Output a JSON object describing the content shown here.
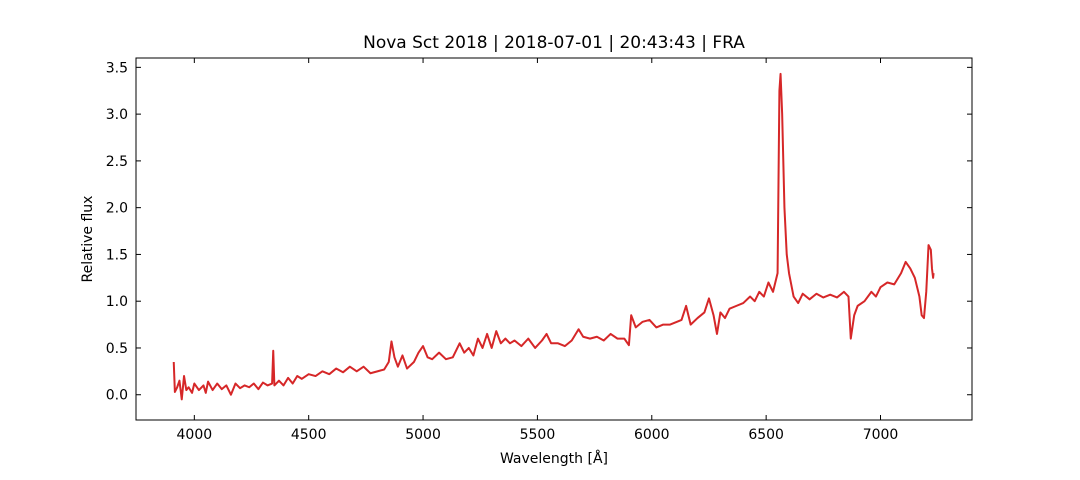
{
  "chart_data": {
    "type": "line",
    "title": "Nova Sct 2018 | 2018-07-01 | 20:43:43 | FRA",
    "xlabel": "Wavelength [Å]",
    "ylabel": "Relative flux",
    "xlim": [
      3745,
      7400
    ],
    "ylim": [
      -0.27,
      3.6
    ],
    "xticks": [
      4000,
      4500,
      5000,
      5500,
      6000,
      6500,
      7000
    ],
    "yticks": [
      {
        "value": 0,
        "label": "0.0"
      },
      0.5,
      {
        "value": 1,
        "label": "1.0"
      },
      1.5,
      {
        "value": 2,
        "label": "2.0"
      },
      2.5,
      {
        "value": 3,
        "label": "3.0"
      },
      3.5
    ],
    "series": [
      {
        "color": "#d62728",
        "x": [
          3910,
          3915,
          3925,
          3935,
          3945,
          3955,
          3965,
          3975,
          3990,
          4000,
          4020,
          4040,
          4050,
          4060,
          4080,
          4100,
          4120,
          4140,
          4160,
          4180,
          4200,
          4220,
          4240,
          4260,
          4280,
          4300,
          4320,
          4340,
          4345,
          4350,
          4370,
          4390,
          4410,
          4430,
          4450,
          4470,
          4500,
          4530,
          4560,
          4590,
          4620,
          4650,
          4680,
          4710,
          4740,
          4770,
          4800,
          4830,
          4850,
          4862,
          4875,
          4890,
          4910,
          4930,
          4960,
          4980,
          5000,
          5020,
          5040,
          5070,
          5100,
          5130,
          5160,
          5180,
          5200,
          5220,
          5240,
          5260,
          5280,
          5300,
          5320,
          5340,
          5360,
          5380,
          5400,
          5430,
          5460,
          5490,
          5520,
          5540,
          5560,
          5590,
          5620,
          5650,
          5680,
          5700,
          5730,
          5760,
          5790,
          5820,
          5850,
          5880,
          5900,
          5910,
          5930,
          5960,
          5990,
          6020,
          6050,
          6080,
          6110,
          6130,
          6150,
          6170,
          6200,
          6230,
          6250,
          6270,
          6285,
          6300,
          6320,
          6340,
          6370,
          6400,
          6430,
          6450,
          6470,
          6490,
          6510,
          6530,
          6550,
          6558,
          6563,
          6570,
          6580,
          6590,
          6600,
          6620,
          6640,
          6660,
          6690,
          6720,
          6750,
          6780,
          6810,
          6840,
          6860,
          6870,
          6885,
          6900,
          6930,
          6960,
          6980,
          7000,
          7030,
          7060,
          7090,
          7110,
          7130,
          7150,
          7170,
          7180,
          7190,
          7200,
          7210,
          7220,
          7225,
          7230,
          7232
        ],
        "values": [
          0.35,
          0.03,
          0.08,
          0.15,
          -0.05,
          0.2,
          0.05,
          0.08,
          0.02,
          0.12,
          0.05,
          0.1,
          0.02,
          0.14,
          0.05,
          0.12,
          0.06,
          0.1,
          0.0,
          0.12,
          0.07,
          0.1,
          0.08,
          0.12,
          0.06,
          0.13,
          0.1,
          0.12,
          0.47,
          0.1,
          0.15,
          0.1,
          0.18,
          0.12,
          0.2,
          0.17,
          0.22,
          0.2,
          0.25,
          0.22,
          0.28,
          0.24,
          0.3,
          0.25,
          0.3,
          0.23,
          0.25,
          0.27,
          0.35,
          0.57,
          0.4,
          0.3,
          0.42,
          0.28,
          0.35,
          0.45,
          0.52,
          0.4,
          0.38,
          0.45,
          0.38,
          0.4,
          0.55,
          0.45,
          0.5,
          0.42,
          0.6,
          0.5,
          0.65,
          0.5,
          0.68,
          0.55,
          0.6,
          0.55,
          0.58,
          0.52,
          0.6,
          0.5,
          0.58,
          0.65,
          0.55,
          0.55,
          0.52,
          0.58,
          0.7,
          0.62,
          0.6,
          0.62,
          0.58,
          0.65,
          0.6,
          0.6,
          0.53,
          0.85,
          0.72,
          0.78,
          0.8,
          0.72,
          0.75,
          0.75,
          0.78,
          0.8,
          0.95,
          0.75,
          0.82,
          0.88,
          1.03,
          0.85,
          0.65,
          0.88,
          0.82,
          0.92,
          0.95,
          0.98,
          1.05,
          1.0,
          1.1,
          1.05,
          1.2,
          1.1,
          1.3,
          3.25,
          3.43,
          3.0,
          2.0,
          1.5,
          1.3,
          1.05,
          0.98,
          1.08,
          1.02,
          1.08,
          1.04,
          1.07,
          1.04,
          1.1,
          1.05,
          0.6,
          0.85,
          0.95,
          1.0,
          1.1,
          1.05,
          1.15,
          1.2,
          1.18,
          1.3,
          1.42,
          1.35,
          1.25,
          1.05,
          0.85,
          0.82,
          1.1,
          1.6,
          1.55,
          1.35,
          1.25,
          1.3
        ]
      }
    ]
  }
}
